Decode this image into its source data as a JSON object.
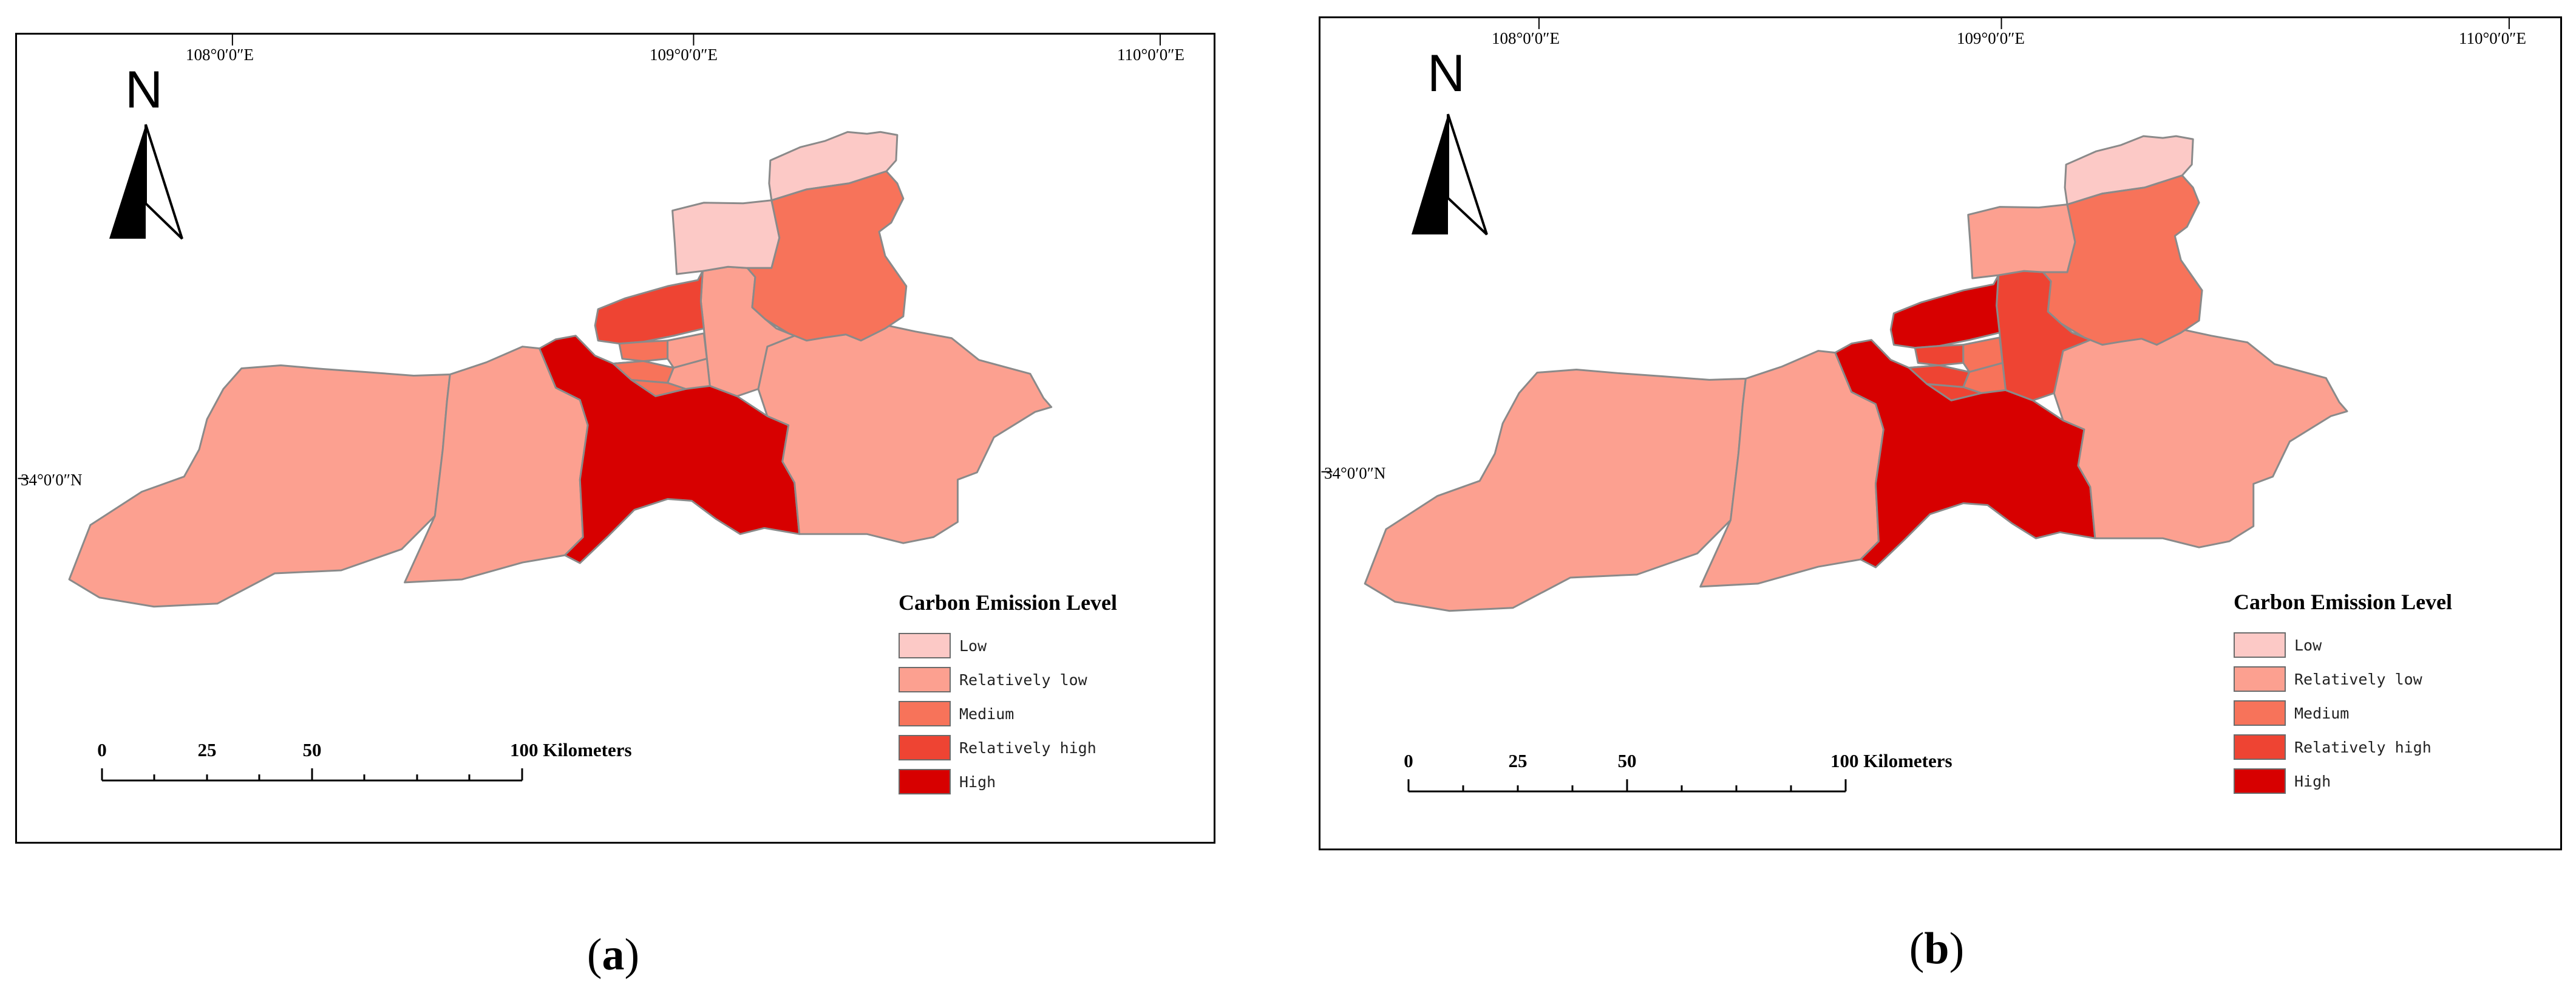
{
  "panels": [
    {
      "id": "a",
      "sub_label_open": "(",
      "sub_label_letter": "a",
      "sub_label_close": ")",
      "lon_labels": [
        "108°0′0″E",
        "109°0′0″E",
        "110°0′0″E"
      ],
      "lat_label": "34°0′0″N",
      "legend_title": "Carbon Emission Level",
      "scale_labels": [
        "0",
        "25",
        "50",
        "100 Kilometers"
      ],
      "north_label": "N",
      "region_levels": {
        "west-county": "relatively_low",
        "mid-west-county": "relatively_low",
        "central-south-county": "high",
        "east-county": "relatively_low",
        "north-central-county": "relatively_low",
        "north-west-district": "relatively_high",
        "north-low-district": "low",
        "north-top-district": "low",
        "north-east-district": "medium",
        "city-core-1": "medium",
        "city-core-2": "relatively_low",
        "city-core-3": "medium",
        "city-core-4": "relatively_low",
        "city-core-5": "medium"
      }
    },
    {
      "id": "b",
      "sub_label_open": "(",
      "sub_label_letter": "b",
      "sub_label_close": ")",
      "lon_labels": [
        "108°0′0″E",
        "109°0′0″E",
        "110°0′0″E"
      ],
      "lat_label": "34°0′0″N",
      "legend_title": "Carbon Emission Level",
      "scale_labels": [
        "0",
        "25",
        "50",
        "100 Kilometers"
      ],
      "north_label": "N",
      "region_levels": {
        "west-county": "relatively_low",
        "mid-west-county": "relatively_low",
        "central-south-county": "high",
        "east-county": "relatively_low",
        "north-central-county": "relatively_high",
        "north-west-district": "high",
        "north-low-district": "relatively_low",
        "north-top-district": "low",
        "north-east-district": "medium",
        "city-core-1": "relatively_high",
        "city-core-2": "medium",
        "city-core-3": "relatively_high",
        "city-core-4": "medium",
        "city-core-5": "relatively_high"
      }
    }
  ],
  "legend": [
    {
      "key": "low",
      "label": "Low",
      "color": "#fcc9c6"
    },
    {
      "key": "relatively_low",
      "label": "Relatively low",
      "color": "#fca090"
    },
    {
      "key": "medium",
      "label": "Medium",
      "color": "#f7735a"
    },
    {
      "key": "relatively_high",
      "label": "Relatively high",
      "color": "#ee4433"
    },
    {
      "key": "high",
      "label": "High",
      "color": "#d70000"
    }
  ],
  "border_color": "#8a8a8a",
  "north_arrow_icon": "north-arrow-icon"
}
